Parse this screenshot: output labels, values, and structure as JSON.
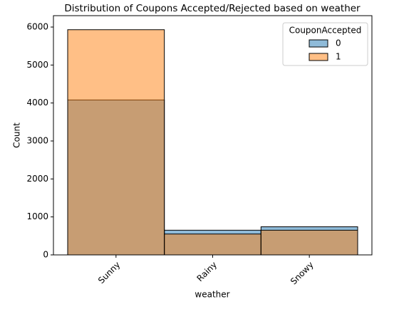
{
  "chart_data": {
    "type": "bar",
    "layout": "layered",
    "title": "Distribution of Coupons Accepted/Rejected based on weather",
    "xlabel": "weather",
    "ylabel": "Count",
    "categories": [
      "Sunny",
      "Rainy",
      "Snowy"
    ],
    "series": [
      {
        "name": "0",
        "color": "#1f77b4",
        "values": [
          4080,
          650,
          740
        ]
      },
      {
        "name": "1",
        "color": "#ff7f0e",
        "values": [
          5930,
          550,
          650
        ]
      }
    ],
    "legend_title": "CouponAccepted",
    "legend": "upper right",
    "ylim": [
      0,
      6300
    ],
    "yticks": [
      0,
      1000,
      2000,
      3000,
      4000,
      5000,
      6000
    ],
    "grid": false
  }
}
